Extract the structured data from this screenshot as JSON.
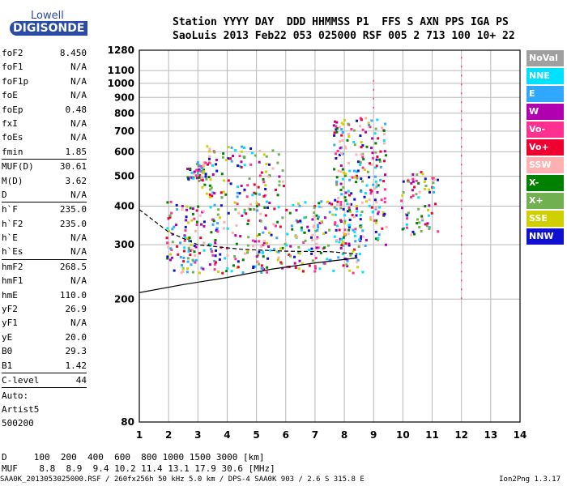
{
  "logo": {
    "line1": "Lowell",
    "line2": "DIGISONDE"
  },
  "header": {
    "line1": "Station YYYY DAY  DDD HHMMSS P1  FFS S AXN PPS IGA PS",
    "line2": "SaoLuis 2013 Feb22 053 025000 RSF 005 2 713 100 10+ 22"
  },
  "params": [
    {
      "name": "foF2",
      "value": "8.450"
    },
    {
      "name": "foF1",
      "value": "N/A"
    },
    {
      "name": "foF1p",
      "value": "N/A"
    },
    {
      "name": "foE",
      "value": "N/A"
    },
    {
      "name": "foEp",
      "value": "0.48"
    },
    {
      "name": "fxI",
      "value": "N/A"
    },
    {
      "name": "foEs",
      "value": "N/A"
    },
    {
      "name": "fmin",
      "value": "1.85",
      "sep": true
    },
    {
      "name": "MUF(D)",
      "value": "30.61"
    },
    {
      "name": "M(D)",
      "value": "3.62"
    },
    {
      "name": "D",
      "value": "N/A",
      "sep": true
    },
    {
      "name": "h`F",
      "value": "235.0"
    },
    {
      "name": "h`F2",
      "value": "235.0"
    },
    {
      "name": "h`E",
      "value": "N/A"
    },
    {
      "name": "h`Es",
      "value": "N/A",
      "sep": true
    },
    {
      "name": "hmF2",
      "value": "268.5"
    },
    {
      "name": "hmF1",
      "value": "N/A"
    },
    {
      "name": "hmE",
      "value": "110.0"
    },
    {
      "name": "yF2",
      "value": "26.9"
    },
    {
      "name": "yF1",
      "value": "N/A"
    },
    {
      "name": "yE",
      "value": "20.0"
    },
    {
      "name": "B0",
      "value": "29.3"
    },
    {
      "name": "B1",
      "value": "1.42",
      "sep": true
    },
    {
      "name": "C-level",
      "value": "44",
      "sep": true
    }
  ],
  "artist": {
    "line1": "Auto:",
    "line2": "Artist5",
    "line3": "500200"
  },
  "footer": {
    "d_row": "D     100  200  400  600  800 1000 1500 3000 [km]",
    "muf_row": "MUF    8.8  8.9  9.4 10.2 11.4 13.1 17.9 30.6 [MHz]"
  },
  "bottom": {
    "left": "SAA0K_2013053025000.RSF / 260fx256h 50 kHz 5.0 km / DPS-4 SAA0K 903 / 2.6 S 315.8 E",
    "right": "Ion2Png 1.3.17"
  },
  "legend": [
    {
      "label": "NoVal",
      "color": "#a0a0a0"
    },
    {
      "label": "NNE",
      "color": "#00e0ff"
    },
    {
      "label": "E",
      "color": "#30a8ff"
    },
    {
      "label": "W",
      "color": "#b000b0"
    },
    {
      "label": "Vo-",
      "color": "#ff3090"
    },
    {
      "label": "Vo+",
      "color": "#ee0030"
    },
    {
      "label": "SSW",
      "color": "#ffb0b0"
    },
    {
      "label": "X-",
      "color": "#008000"
    },
    {
      "label": "X+",
      "color": "#70b050"
    },
    {
      "label": "SSE",
      "color": "#d0d000"
    },
    {
      "label": "NNW",
      "color": "#1010d0"
    }
  ],
  "chart_data": {
    "type": "scatter",
    "x_range": [
      1,
      14
    ],
    "x_ticks": [
      "1",
      "2",
      "3",
      "4",
      "5",
      "6",
      "7",
      "8",
      "9",
      "10",
      "11",
      "12",
      "13",
      "14"
    ],
    "y_range": [
      80,
      1280
    ],
    "y_scale": "log",
    "y_ticks": [
      "80",
      "200",
      "300",
      "400",
      "500",
      "600",
      "700",
      "800",
      "900",
      "1000",
      "1100",
      "1280"
    ],
    "grid": true,
    "legend_position": "right",
    "traces": [
      {
        "name": "profile",
        "x": [
          1,
          2.5,
          4,
          5.5,
          7,
          8.45
        ],
        "y": [
          210,
          223,
          235,
          250,
          262,
          272
        ]
      },
      {
        "name": "trace",
        "x": [
          1,
          2,
          3,
          4.5,
          6,
          7.5,
          8.45
        ],
        "y": [
          390,
          330,
          300,
          290,
          286,
          285,
          280
        ]
      }
    ],
    "clusters": [
      {
        "x": [
          1.9,
          8.6
        ],
        "y": [
          245,
          420
        ],
        "n": 420
      },
      {
        "x": [
          2.6,
          3.4
        ],
        "y": [
          490,
          560
        ],
        "n": 50
      },
      {
        "x": [
          3.0,
          5.9
        ],
        "y": [
          430,
          640
        ],
        "n": 110
      },
      {
        "x": [
          7.6,
          9.4
        ],
        "y": [
          300,
          780
        ],
        "n": 230
      },
      {
        "x": [
          9.9,
          11.2
        ],
        "y": [
          320,
          520
        ],
        "n": 70
      }
    ],
    "vertical_lines": [
      {
        "x": 9.0,
        "y": [
          830,
          1070
        ]
      },
      {
        "x": 12.0,
        "y": [
          200,
          1270
        ]
      }
    ]
  }
}
